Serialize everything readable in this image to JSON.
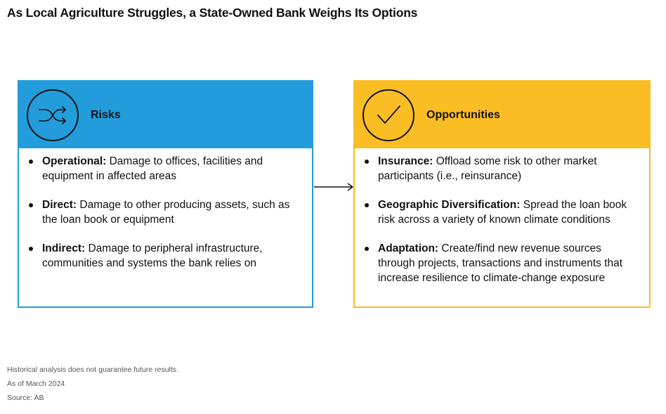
{
  "title": "As Local Agriculture Struggles, a State-Owned Bank Weighs Its Options",
  "risks": {
    "heading": "Risks",
    "icon": "shuffle-icon",
    "color": "#229cdb",
    "items": [
      {
        "label": "Operational:",
        "text": "Damage to offices, facilities and equipment in affected areas"
      },
      {
        "label": "Direct:",
        "text": "Damage to other producing assets, such as the loan book or equipment"
      },
      {
        "label": "Indirect:",
        "text": "Damage to peripheral infrastructure, communities and systems the bank relies on"
      }
    ]
  },
  "opportunities": {
    "heading": "Opportunities",
    "icon": "checkmark-icon",
    "color": "#fbbd24",
    "items": [
      {
        "label": "Insurance:",
        "text": "Offload some risk to other market participants (i.e., reinsurance)"
      },
      {
        "label": "Geographic Diversification:",
        "text": "Spread the loan book risk across a variety of known climate conditions"
      },
      {
        "label": "Adaptation:",
        "text": "Create/find new revenue sources through projects, transactions and instruments that increase resilience to climate-change exposure"
      }
    ]
  },
  "footnotes": [
    "Historical analysis does not guarantee future results.",
    "As of March 2024",
    "Source: AB"
  ]
}
